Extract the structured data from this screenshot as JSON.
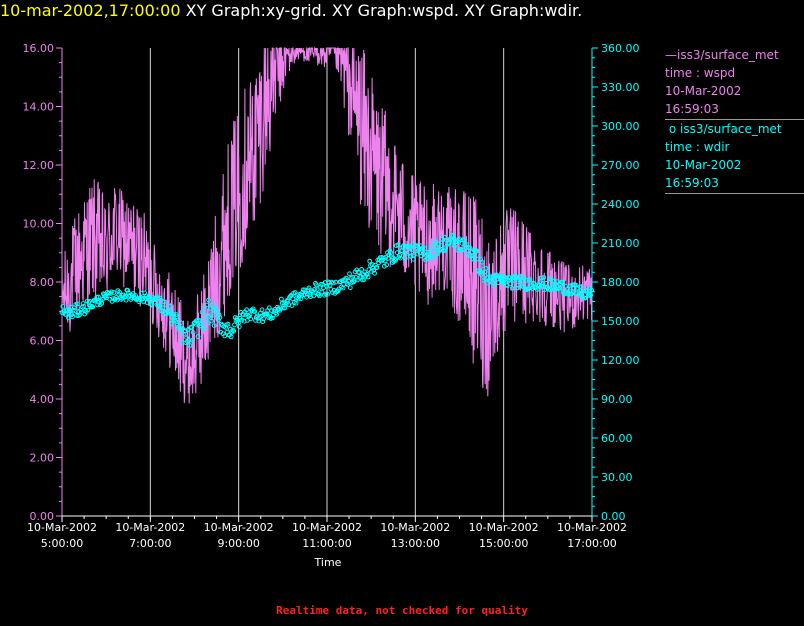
{
  "header": {
    "timestamp": "10-mar-2002,17:00:00",
    "graph_titles": [
      "XY Graph:xy-grid.",
      "XY Graph:wspd.",
      "XY Graph:wdir."
    ]
  },
  "legend": [
    {
      "marker": "line",
      "source": "iss3/surface_met",
      "variable": "time : wspd",
      "date": "10-Mar-2002",
      "time": "16:59:03",
      "color": "#ee82ee"
    },
    {
      "marker": "circle",
      "source": "iss3/surface_met",
      "variable": "time : wdir",
      "date": "10-Mar-2002",
      "time": "16:59:03",
      "color": "#00ffff"
    }
  ],
  "footer": "Realtime data, not checked for quality",
  "chart_data": {
    "type": "line",
    "xlabel": "Time",
    "x_range": [
      "10-Mar-2002 05:00:00",
      "10-Mar-2002 17:00:00"
    ],
    "x_ticks": [
      {
        "date": "10-Mar-2002",
        "time": "5:00:00"
      },
      {
        "date": "10-Mar-2002",
        "time": "7:00:00"
      },
      {
        "date": "10-Mar-2002",
        "time": "9:00:00"
      },
      {
        "date": "10-Mar-2002",
        "time": "11:00:00"
      },
      {
        "date": "10-Mar-2002",
        "time": "13:00:00"
      },
      {
        "date": "10-Mar-2002",
        "time": "15:00:00"
      },
      {
        "date": "10-Mar-2002",
        "time": "17:00:00"
      }
    ],
    "y_left": {
      "range": [
        0,
        16
      ],
      "ticks": [
        "0.00",
        "2.00",
        "4.00",
        "6.00",
        "8.00",
        "10.00",
        "12.00",
        "14.00",
        "16.00"
      ],
      "color": "#ee82ee"
    },
    "y_right": {
      "range": [
        0,
        360
      ],
      "ticks": [
        "0.00",
        "30.00",
        "60.00",
        "90.00",
        "120.00",
        "150.00",
        "180.00",
        "210.00",
        "240.00",
        "270.00",
        "300.00",
        "330.00",
        "360.00"
      ],
      "color": "#00ffff"
    },
    "vertical_grid": true,
    "series": [
      {
        "name": "wspd",
        "axis": "left",
        "style": "line",
        "color": "#ee82ee",
        "x": [
          "05:00",
          "05:10",
          "05:20",
          "05:30",
          "05:40",
          "05:50",
          "06:00",
          "06:10",
          "06:20",
          "06:30",
          "06:40",
          "06:50",
          "07:00",
          "07:10",
          "07:20",
          "07:30",
          "07:40",
          "07:50",
          "08:00",
          "08:10",
          "08:20",
          "08:30",
          "08:40",
          "08:50",
          "09:00",
          "09:10",
          "09:20",
          "09:30",
          "09:40",
          "09:50",
          "10:00",
          "10:10",
          "10:20",
          "10:30",
          "10:40",
          "10:50",
          "11:00",
          "11:10",
          "11:20",
          "11:30",
          "11:40",
          "11:50",
          "12:00",
          "12:10",
          "12:20",
          "12:30",
          "12:40",
          "12:50",
          "13:00",
          "13:10",
          "13:20",
          "13:30",
          "13:40",
          "13:50",
          "14:00",
          "14:10",
          "14:20",
          "14:30",
          "14:40",
          "14:50",
          "15:00",
          "15:10",
          "15:20",
          "15:30",
          "15:40",
          "15:50",
          "16:00",
          "16:10",
          "16:20",
          "16:30",
          "16:40",
          "16:50",
          "17:00"
        ],
        "mean": [
          7.5,
          7.9,
          8.5,
          9.0,
          9.5,
          9.3,
          9.0,
          9.8,
          9.5,
          9.3,
          9.0,
          8.8,
          8.2,
          7.6,
          7.1,
          6.5,
          5.8,
          5.2,
          5.5,
          6.3,
          7.2,
          8.2,
          9.5,
          10.5,
          11.2,
          12.0,
          12.5,
          13.5,
          14.5,
          15.2,
          15.5,
          15.8,
          15.9,
          15.9,
          15.8,
          15.9,
          15.8,
          15.9,
          15.5,
          14.8,
          14.0,
          13.0,
          12.3,
          11.6,
          11.2,
          10.8,
          10.3,
          9.9,
          9.6,
          9.2,
          9.3,
          9.6,
          9.5,
          9.1,
          8.8,
          8.5,
          8.0,
          7.5,
          7.0,
          7.6,
          8.2,
          8.5,
          8.6,
          8.3,
          8.2,
          8.0,
          7.9,
          7.7,
          7.5,
          7.4,
          7.5,
          7.7,
          7.6
        ],
        "amp": [
          1.0,
          1.5,
          1.7,
          1.7,
          1.8,
          1.8,
          1.5,
          1.5,
          1.4,
          1.4,
          1.5,
          1.4,
          1.3,
          1.2,
          1.3,
          1.5,
          1.5,
          1.2,
          1.5,
          1.5,
          1.8,
          2.0,
          2.3,
          2.3,
          2.5,
          2.5,
          2.5,
          2.3,
          2.2,
          1.5,
          1.0,
          0.5,
          0.3,
          0.3,
          0.5,
          0.4,
          0.6,
          0.4,
          1.0,
          1.6,
          2.2,
          2.5,
          2.4,
          2.3,
          2.2,
          2.0,
          1.8,
          1.8,
          1.7,
          1.8,
          1.7,
          1.6,
          1.6,
          1.7,
          2.0,
          2.3,
          2.5,
          2.7,
          2.5,
          2.0,
          1.8,
          1.8,
          1.6,
          1.5,
          1.4,
          1.2,
          1.2,
          1.1,
          1.0,
          1.0,
          0.9,
          0.9,
          0.8
        ]
      },
      {
        "name": "wdir",
        "axis": "right",
        "style": "circle",
        "color": "#00ffff",
        "x": [
          "05:00",
          "05:10",
          "05:20",
          "05:30",
          "05:40",
          "05:50",
          "06:00",
          "06:10",
          "06:20",
          "06:30",
          "06:40",
          "06:50",
          "07:00",
          "07:10",
          "07:20",
          "07:30",
          "07:40",
          "07:50",
          "08:00",
          "08:10",
          "08:20",
          "08:30",
          "08:40",
          "08:50",
          "09:00",
          "09:10",
          "09:20",
          "09:30",
          "09:40",
          "09:50",
          "10:00",
          "10:10",
          "10:20",
          "10:30",
          "10:40",
          "10:50",
          "11:00",
          "11:10",
          "11:20",
          "11:30",
          "11:40",
          "11:50",
          "12:00",
          "12:10",
          "12:20",
          "12:30",
          "12:40",
          "12:50",
          "13:00",
          "13:10",
          "13:20",
          "13:30",
          "13:40",
          "13:50",
          "14:00",
          "14:10",
          "14:20",
          "14:30",
          "14:40",
          "14:50",
          "15:00",
          "15:10",
          "15:20",
          "15:30",
          "15:40",
          "15:50",
          "16:00",
          "16:10",
          "16:20",
          "16:30",
          "16:40",
          "16:50",
          "17:00"
        ],
        "mean": [
          157,
          156,
          158,
          160,
          163,
          166,
          168,
          169,
          170,
          170,
          169,
          168,
          167,
          164,
          160,
          153,
          143,
          135,
          142,
          150,
          158,
          152,
          145,
          143,
          150,
          155,
          156,
          154,
          155,
          157,
          163,
          166,
          168,
          171,
          174,
          174,
          175,
          176,
          178,
          181,
          184,
          187,
          191,
          194,
          197,
          201,
          204,
          204,
          203,
          202,
          203,
          207,
          210,
          211,
          209,
          207,
          201,
          190,
          182,
          181,
          181,
          180,
          180,
          179,
          179,
          179,
          178,
          177,
          176,
          175,
          172,
          171,
          171
        ],
        "amp": [
          5,
          5,
          5,
          5,
          4,
          4,
          4,
          4,
          4,
          4,
          4,
          4,
          4,
          5,
          6,
          7,
          8,
          8,
          8,
          8,
          9,
          8,
          7,
          7,
          6,
          5,
          5,
          5,
          5,
          5,
          5,
          5,
          5,
          5,
          5,
          5,
          5,
          5,
          5,
          6,
          6,
          6,
          6,
          6,
          6,
          6,
          6,
          6,
          6,
          6,
          6,
          6,
          6,
          6,
          6,
          6,
          7,
          7,
          6,
          5,
          5,
          5,
          5,
          5,
          5,
          5,
          5,
          5,
          5,
          5,
          5,
          5,
          5
        ]
      }
    ]
  }
}
